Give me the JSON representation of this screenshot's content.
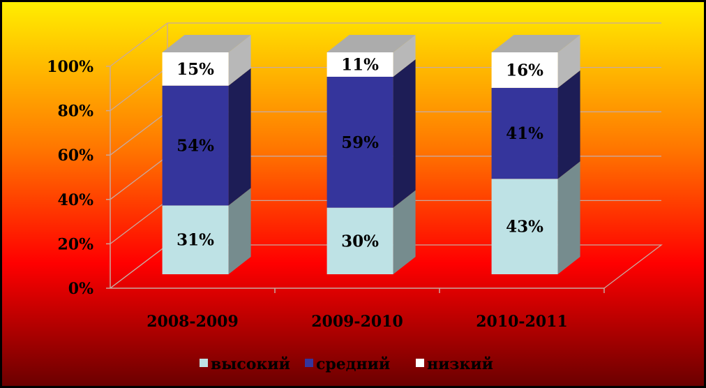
{
  "colors": {
    "background_top": "#ffee00",
    "background_mid": "#ff7700",
    "background_low": "#ff0000",
    "background_bottom": "#6b0000",
    "gridline": "#c8a9a0"
  },
  "chart_data": {
    "type": "bar",
    "stacked": true,
    "three_d": true,
    "categories": [
      "2008-2009",
      "2009-2010",
      "2010-2011"
    ],
    "series": [
      {
        "name": "высокий",
        "values": [
          31,
          30,
          43
        ],
        "labels": [
          "31%",
          "30%",
          "43%"
        ],
        "color": "#bee2e5"
      },
      {
        "name": "средний",
        "values": [
          54,
          59,
          41
        ],
        "labels": [
          "54%",
          "59%",
          "41%"
        ],
        "color": "#35359c"
      },
      {
        "name": "низкий",
        "values": [
          15,
          11,
          16
        ],
        "labels": [
          "15%",
          "11%",
          "16%"
        ],
        "color": "#ffffff"
      }
    ],
    "y_ticks": [
      "0%",
      "20%",
      "40%",
      "60%",
      "80%",
      "100%"
    ],
    "ylim": [
      0,
      100
    ],
    "grid": true,
    "legend_position": "bottom"
  }
}
